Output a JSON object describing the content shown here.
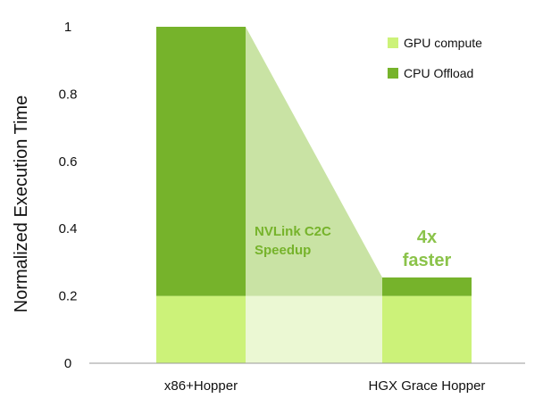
{
  "chart_data": {
    "type": "bar",
    "stacked": true,
    "title": "",
    "xlabel": "",
    "ylabel": "Normalized Execution Time",
    "ylim": [
      0,
      1
    ],
    "yticks": [
      {
        "value": 0,
        "label": "0"
      },
      {
        "value": 0.2,
        "label": "0.2"
      },
      {
        "value": 0.4,
        "label": "0.4"
      },
      {
        "value": 0.6,
        "label": "0.6"
      },
      {
        "value": 0.8,
        "label": "0.8"
      },
      {
        "value": 1,
        "label": "1"
      }
    ],
    "categories": [
      "x86+Hopper",
      "HGX Grace Hopper"
    ],
    "series": [
      {
        "name": "GPU compute",
        "color": "#ccf279",
        "values": [
          0.2,
          0.2
        ]
      },
      {
        "name": "CPU Offload",
        "color": "#76b32b",
        "values": [
          0.8,
          0.055
        ]
      }
    ],
    "grid": false,
    "legend_position": "top-right",
    "annotations": {
      "connector_label": [
        "NVLink C2C",
        "Speedup"
      ],
      "connector_color": "#c9e3a4",
      "connector_base_color": "#ebf8d3",
      "connector_label_color": "#76b32b",
      "speedup_label": [
        "4x",
        "faster"
      ],
      "speedup_color": "#8bc34a"
    },
    "axis_color": "#999999",
    "text_color": "#111111"
  }
}
